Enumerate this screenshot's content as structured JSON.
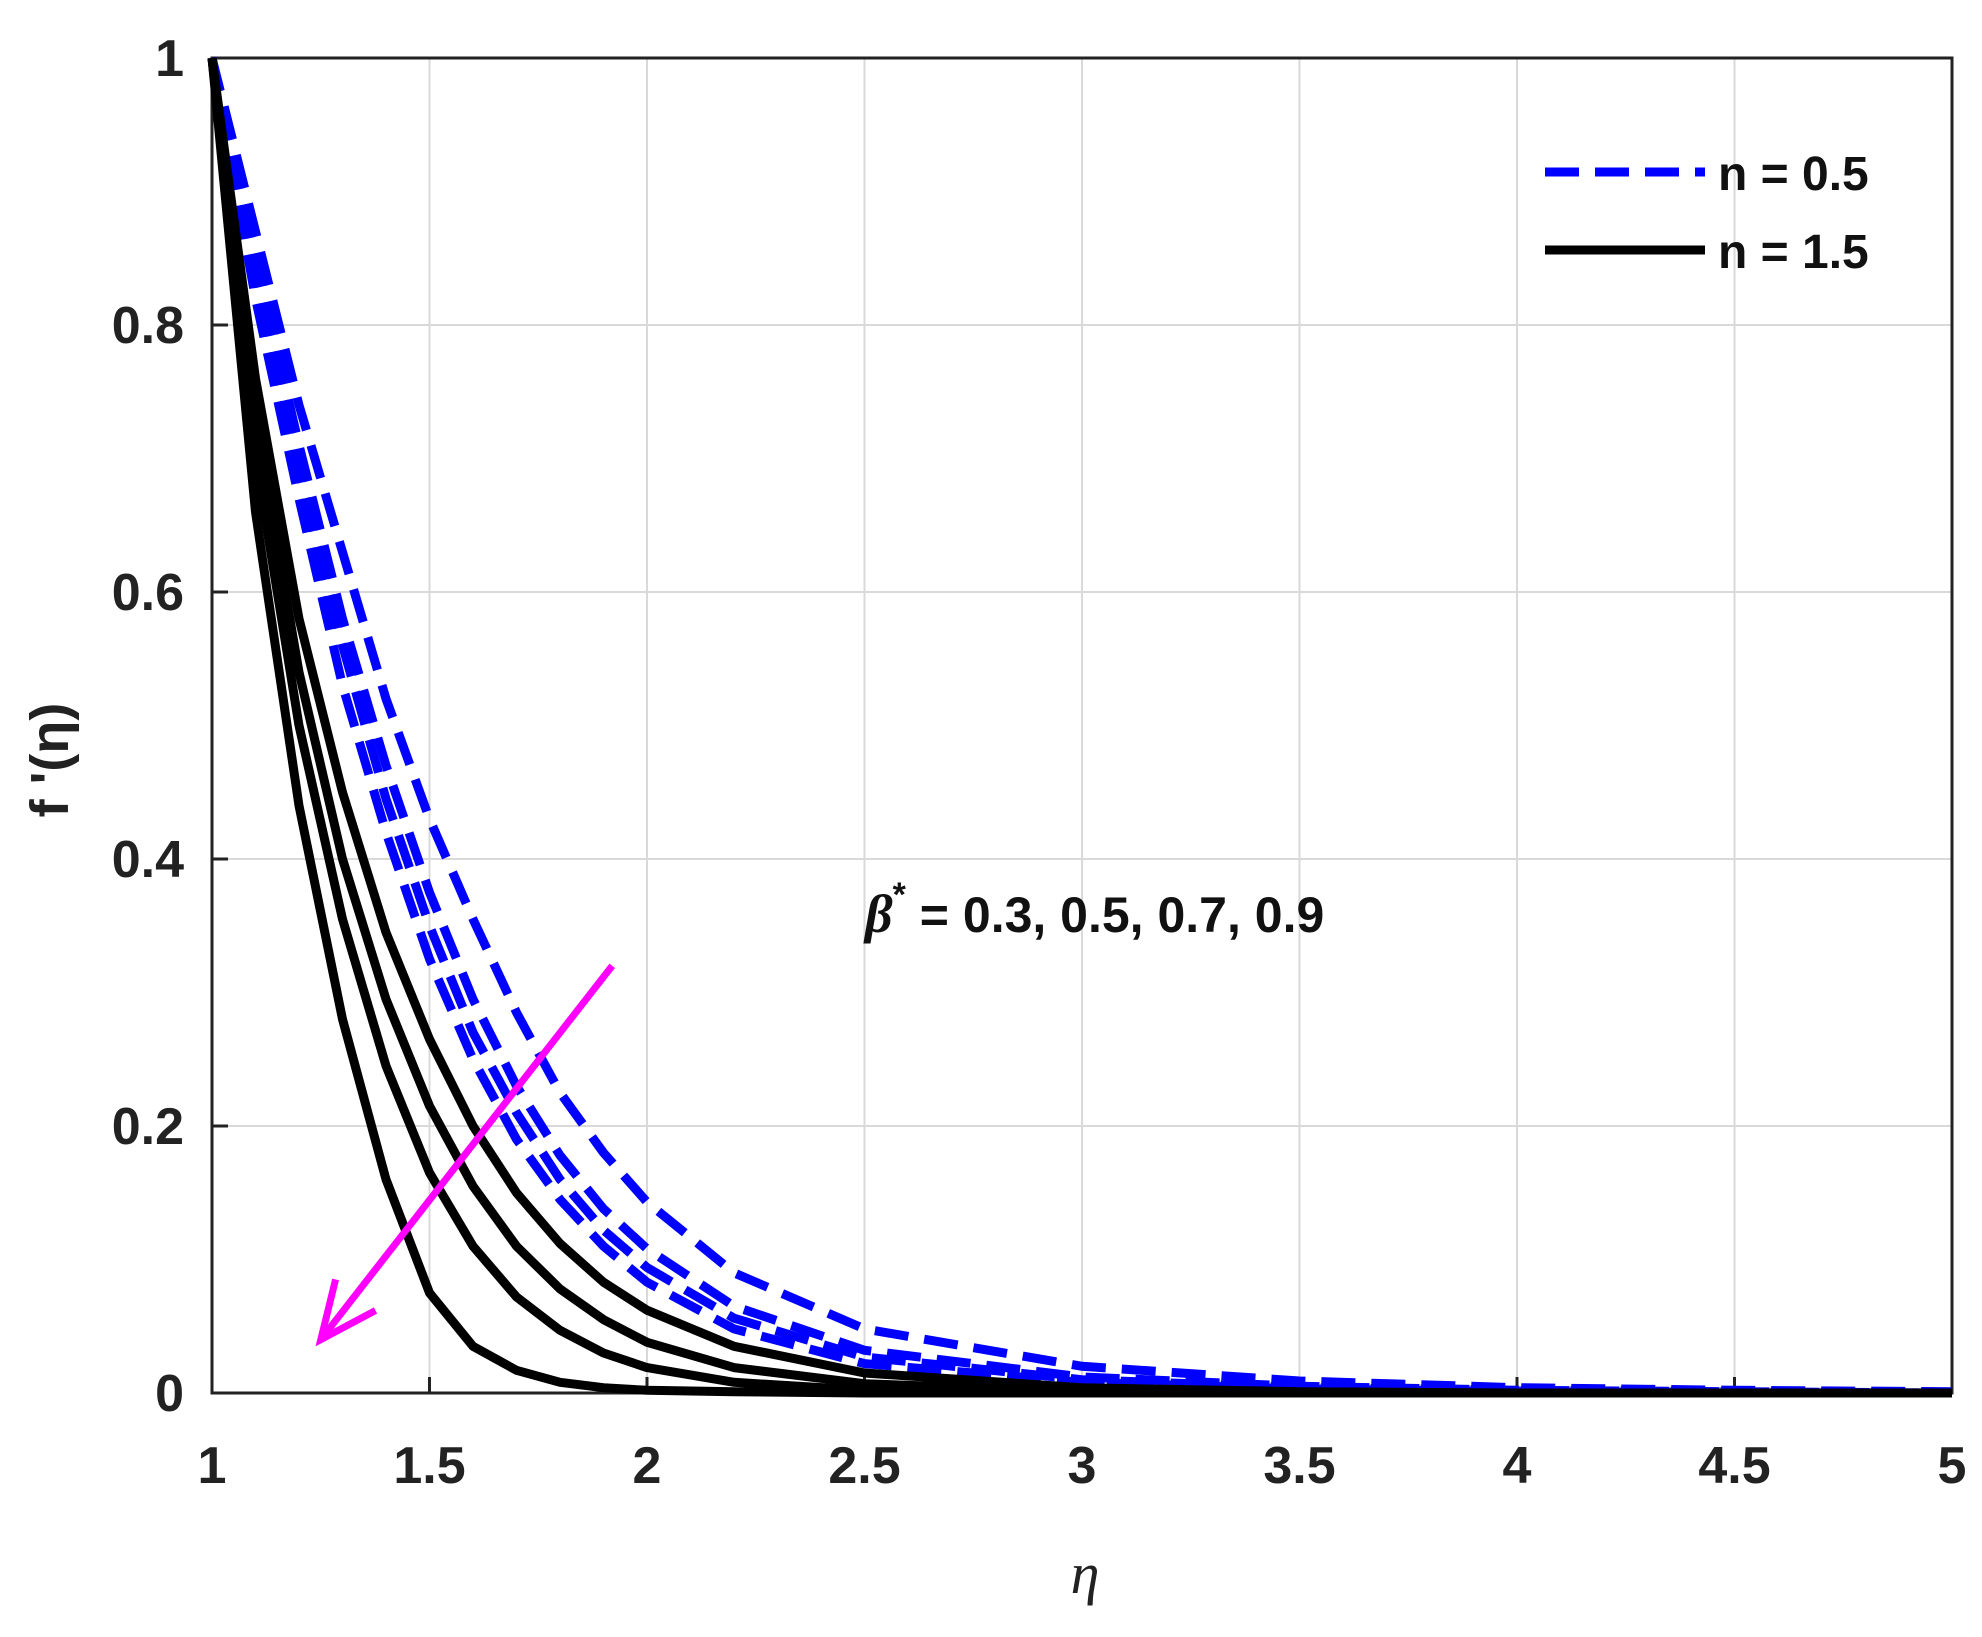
{
  "chart_data": {
    "type": "line",
    "title": "",
    "xlabel": "η",
    "ylabel": "f '(η)",
    "xlim": [
      1,
      5
    ],
    "ylim": [
      0,
      1
    ],
    "x_ticks": [
      "1",
      "1.5",
      "2",
      "2.5",
      "3",
      "3.5",
      "4",
      "4.5",
      "5"
    ],
    "y_ticks": [
      "0",
      "0.2",
      "0.4",
      "0.6",
      "0.8",
      "1"
    ],
    "grid": true,
    "legend_position": "top-right",
    "legend": [
      {
        "label": "n = 0.5",
        "style": "dashed",
        "color": "#0000ff"
      },
      {
        "label": "n = 1.5",
        "style": "solid",
        "color": "#000000"
      }
    ],
    "annotation": {
      "symbol": "β",
      "superscript": "*",
      "text": " = 0.3, 0.5, 0.7, 0.9",
      "arrow_color": "#ff00ff",
      "arrow_from": [
        1.92,
        0.32
      ],
      "arrow_to": [
        1.25,
        0.04
      ]
    },
    "series": [
      {
        "group": "n = 0.5",
        "color": "#0000ff",
        "x": [
          1,
          1.1,
          1.2,
          1.3,
          1.4,
          1.5,
          1.6,
          1.7,
          1.8,
          1.9,
          2,
          2.2,
          2.5,
          3,
          3.5,
          4,
          4.5,
          5
        ],
        "y": [
          1,
          0.87,
          0.74,
          0.63,
          0.52,
          0.43,
          0.355,
          0.285,
          0.225,
          0.18,
          0.143,
          0.09,
          0.048,
          0.02,
          0.009,
          0.004,
          0.002,
          0.001
        ]
      },
      {
        "group": "n = 0.5",
        "color": "#0000ff",
        "x": [
          1,
          1.1,
          1.2,
          1.3,
          1.4,
          1.5,
          1.6,
          1.7,
          1.8,
          1.9,
          2,
          2.2,
          2.5,
          3,
          3.5,
          4,
          4.5,
          5
        ],
        "y": [
          1,
          0.85,
          0.71,
          0.58,
          0.47,
          0.375,
          0.295,
          0.23,
          0.178,
          0.138,
          0.108,
          0.065,
          0.032,
          0.012,
          0.005,
          0.002,
          0.001,
          0
        ]
      },
      {
        "group": "n = 0.5",
        "color": "#0000ff",
        "x": [
          1,
          1.1,
          1.2,
          1.3,
          1.4,
          1.5,
          1.6,
          1.7,
          1.8,
          1.9,
          2,
          2.2,
          2.5,
          3,
          3.5,
          4,
          4.5,
          5
        ],
        "y": [
          1,
          0.84,
          0.69,
          0.56,
          0.445,
          0.35,
          0.27,
          0.21,
          0.16,
          0.122,
          0.094,
          0.056,
          0.027,
          0.01,
          0.004,
          0.002,
          0.001,
          0
        ]
      },
      {
        "group": "n = 0.5",
        "color": "#0000ff",
        "x": [
          1,
          1.1,
          1.2,
          1.3,
          1.4,
          1.5,
          1.6,
          1.7,
          1.8,
          1.9,
          2,
          2.2,
          2.5,
          3,
          3.5,
          4,
          4.5,
          5
        ],
        "y": [
          1,
          0.82,
          0.67,
          0.53,
          0.42,
          0.325,
          0.25,
          0.19,
          0.145,
          0.11,
          0.083,
          0.048,
          0.022,
          0.008,
          0.003,
          0.001,
          0,
          0
        ]
      },
      {
        "group": "n = 1.5",
        "color": "#000000",
        "x": [
          1,
          1.1,
          1.2,
          1.3,
          1.4,
          1.5,
          1.6,
          1.7,
          1.8,
          1.9,
          2,
          2.2,
          2.5,
          3,
          3.5,
          4,
          4.5,
          5
        ],
        "y": [
          1,
          0.76,
          0.58,
          0.45,
          0.345,
          0.265,
          0.2,
          0.15,
          0.112,
          0.083,
          0.062,
          0.035,
          0.015,
          0.004,
          0.001,
          0,
          0,
          0
        ]
      },
      {
        "group": "n = 1.5",
        "color": "#000000",
        "x": [
          1,
          1.1,
          1.2,
          1.3,
          1.4,
          1.5,
          1.6,
          1.7,
          1.8,
          1.9,
          2,
          2.2,
          2.5,
          3,
          3.5,
          4,
          4.5,
          5
        ],
        "y": [
          1,
          0.73,
          0.54,
          0.4,
          0.295,
          0.215,
          0.155,
          0.11,
          0.078,
          0.055,
          0.038,
          0.019,
          0.007,
          0.001,
          0,
          0,
          0,
          0
        ]
      },
      {
        "group": "n = 1.5",
        "color": "#000000",
        "x": [
          1,
          1.1,
          1.2,
          1.3,
          1.4,
          1.5,
          1.6,
          1.7,
          1.8,
          1.9,
          2,
          2.2,
          2.5,
          3,
          3.5,
          4,
          4.5,
          5
        ],
        "y": [
          1,
          0.7,
          0.5,
          0.355,
          0.245,
          0.165,
          0.11,
          0.072,
          0.047,
          0.03,
          0.019,
          0.008,
          0.002,
          0,
          0,
          0,
          0,
          0
        ]
      },
      {
        "group": "n = 1.5",
        "color": "#000000",
        "x": [
          1,
          1.1,
          1.2,
          1.3,
          1.4,
          1.5,
          1.6,
          1.7,
          1.8,
          1.9,
          2,
          2.2,
          2.5,
          3,
          3.5,
          4,
          4.5,
          5
        ],
        "y": [
          1,
          0.66,
          0.44,
          0.28,
          0.16,
          0.075,
          0.035,
          0.017,
          0.008,
          0.004,
          0.002,
          0.001,
          0,
          0,
          0,
          0,
          0,
          0
        ]
      }
    ]
  }
}
